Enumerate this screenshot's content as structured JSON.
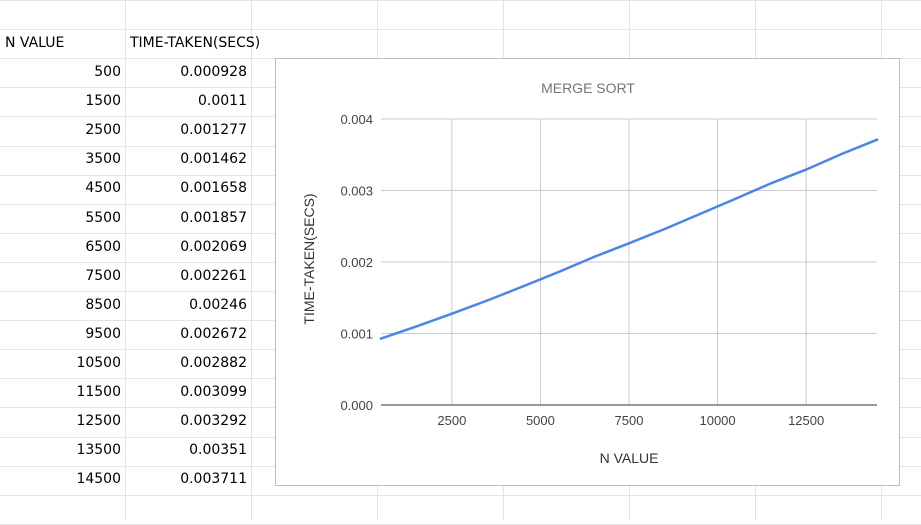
{
  "sheet": {
    "headers": {
      "col_a": "N VALUE",
      "col_b": "TIME-TAKEN(SECS)"
    },
    "rows": [
      {
        "n": "500",
        "t": "0.000928"
      },
      {
        "n": "1500",
        "t": "0.0011"
      },
      {
        "n": "2500",
        "t": "0.001277"
      },
      {
        "n": "3500",
        "t": "0.001462"
      },
      {
        "n": "4500",
        "t": "0.001658"
      },
      {
        "n": "5500",
        "t": "0.001857"
      },
      {
        "n": "6500",
        "t": "0.002069"
      },
      {
        "n": "7500",
        "t": "0.002261"
      },
      {
        "n": "8500",
        "t": "0.00246"
      },
      {
        "n": "9500",
        "t": "0.002672"
      },
      {
        "n": "10500",
        "t": "0.002882"
      },
      {
        "n": "11500",
        "t": "0.003099"
      },
      {
        "n": "12500",
        "t": "0.003292"
      },
      {
        "n": "13500",
        "t": "0.00351"
      },
      {
        "n": "14500",
        "t": "0.003711"
      }
    ]
  },
  "chart_data": {
    "type": "line",
    "title": "MERGE SORT",
    "xlabel": "N VALUE",
    "ylabel": "TIME-TAKEN(SECS)",
    "xlim": [
      500,
      14500
    ],
    "ylim": [
      0,
      0.004
    ],
    "xticks": [
      2500,
      5000,
      7500,
      10000,
      12500
    ],
    "yticks": [
      "0.000",
      "0.001",
      "0.002",
      "0.003",
      "0.004"
    ],
    "grid": true,
    "legend": "none",
    "series": [
      {
        "color": "#4a86e8",
        "x": [
          500,
          1500,
          2500,
          3500,
          4500,
          5500,
          6500,
          7500,
          8500,
          9500,
          10500,
          11500,
          12500,
          13500,
          14500
        ],
        "y": [
          0.000928,
          0.0011,
          0.001277,
          0.001462,
          0.001658,
          0.001857,
          0.002069,
          0.002261,
          0.00246,
          0.002672,
          0.002882,
          0.003099,
          0.003292,
          0.00351,
          0.003711
        ]
      }
    ]
  }
}
